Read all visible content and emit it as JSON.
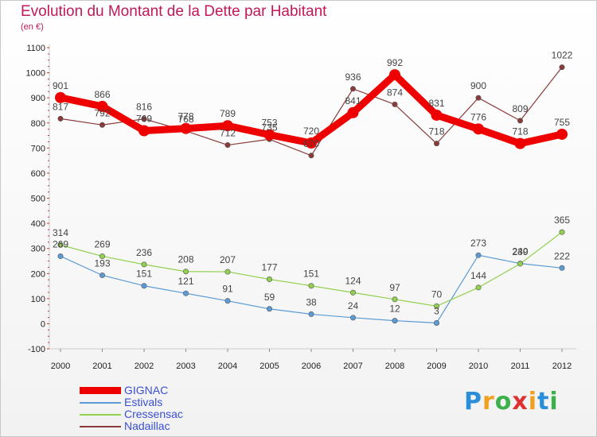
{
  "title": "Evolution du Montant de la Dette par Habitant",
  "subtitle": "(en €)",
  "chart_data": {
    "type": "line",
    "x": [
      "2000",
      "2001",
      "2002",
      "2003",
      "2004",
      "2005",
      "2006",
      "2007",
      "2008",
      "2009",
      "2010",
      "2011",
      "2012"
    ],
    "ylim": [
      -100,
      1100
    ],
    "yticks": [
      "-100",
      "0",
      "100",
      "200",
      "300",
      "400",
      "500",
      "600",
      "700",
      "800",
      "900",
      "1000",
      "1100"
    ],
    "grid": false,
    "legend_position": "bottom-left",
    "series": [
      {
        "name": "GIGNAC",
        "color": "#ee0000",
        "values": [
          901,
          866,
          769,
          778,
          789,
          753,
          720,
          841,
          992,
          831,
          776,
          718,
          755
        ]
      },
      {
        "name": "Estivals",
        "color": "#5b9bd5",
        "values": [
          269,
          193,
          151,
          121,
          91,
          59,
          38,
          24,
          12,
          3,
          273,
          240,
          222
        ]
      },
      {
        "name": "Cressensac",
        "color": "#92d050",
        "values": [
          314,
          269,
          236,
          208,
          207,
          177,
          151,
          124,
          97,
          70,
          144,
          239,
          365
        ]
      },
      {
        "name": "Nadaillac",
        "color": "#8b3a3a",
        "values": [
          817,
          792,
          816,
          768,
          712,
          735,
          670,
          936,
          874,
          718,
          900,
          809,
          1022
        ]
      }
    ]
  },
  "logo": {
    "letters": [
      "P",
      "r",
      "o",
      "x",
      "i",
      "t",
      "i"
    ],
    "colors": [
      "#2a8fd8",
      "#f0a020",
      "#3cb04a",
      "#e03030",
      "#f0a020",
      "#2a8fd8",
      "#3cb04a"
    ]
  }
}
